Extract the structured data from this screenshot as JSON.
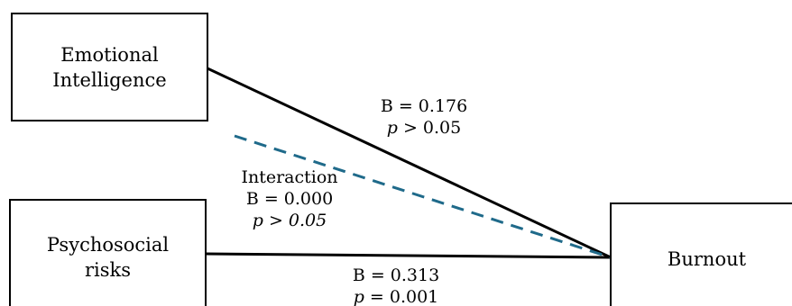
{
  "nodes": {
    "emotional_intelligence": {
      "line1": "Emotional",
      "line2": "Intelligence"
    },
    "psychosocial_risks": {
      "line1": "Psychosocial",
      "line2": "risks"
    },
    "burnout": {
      "label": "Burnout"
    }
  },
  "edges": {
    "ei_to_burnout": {
      "b": "B = 0.176",
      "p_symbol": "p",
      "p_rest": " > 0.05"
    },
    "interaction": {
      "title": "Interaction",
      "b": "B = 0.000",
      "p": "p > 0.05"
    },
    "pr_to_burnout": {
      "b": "B = 0.313",
      "p_symbol": "p",
      "p_rest": " = 0.001"
    }
  },
  "colors": {
    "lines": "#000000",
    "interaction_dash": "#1f6a8a"
  }
}
